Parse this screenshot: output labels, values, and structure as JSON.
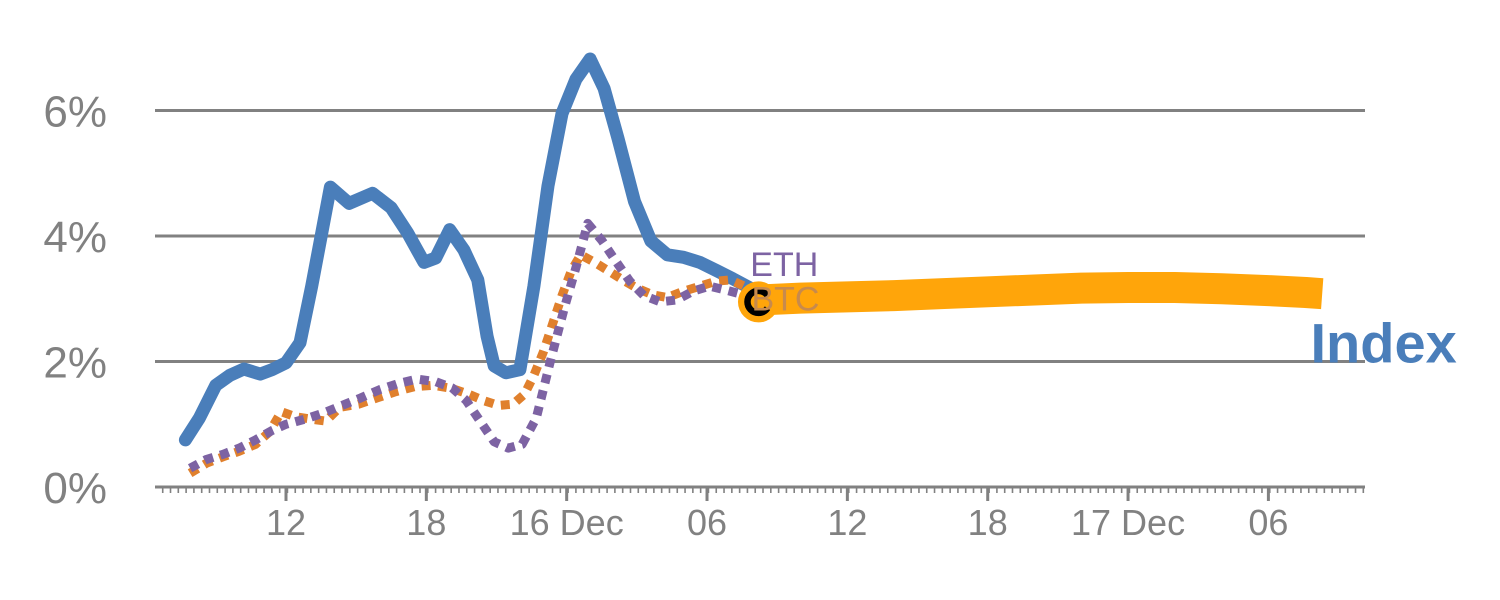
{
  "chart_data": {
    "type": "line",
    "title": "",
    "xlabel": "",
    "ylabel": "",
    "x_unit": "hours since 15 Dec 00:00",
    "xlim": [
      6.4,
      58.13
    ],
    "ylim": [
      0,
      6.9
    ],
    "grid": "horizontal",
    "grid_color": "#818181",
    "axis_color": "#818181",
    "text_color": "#818181",
    "y_axis": {
      "ticks": [
        {
          "pct": 0,
          "label": "0%"
        },
        {
          "pct": 2,
          "label": "2%"
        },
        {
          "pct": 4,
          "label": "4%"
        },
        {
          "pct": 6,
          "label": "6%"
        }
      ]
    },
    "x_axis": {
      "minor_tick_step_hours": 0.3333,
      "ticks": [
        {
          "hour": 12,
          "label": "12"
        },
        {
          "hour": 18,
          "label": "18"
        },
        {
          "hour": 24,
          "label": "16 Dec"
        },
        {
          "hour": 30,
          "label": "06"
        },
        {
          "hour": 36,
          "label": "12"
        },
        {
          "hour": 42,
          "label": "18"
        },
        {
          "hour": 48,
          "label": "17 Dec"
        },
        {
          "hour": 54,
          "label": "06"
        }
      ]
    },
    "series": [
      {
        "id": "index",
        "name": "Index",
        "color": "#4a7eba",
        "line_style": "solid",
        "line_width": 13,
        "points": [
          [
            7.7,
            0.75
          ],
          [
            8.3,
            1.1
          ],
          [
            9.0,
            1.62
          ],
          [
            9.6,
            1.78
          ],
          [
            10.2,
            1.88
          ],
          [
            10.9,
            1.8
          ],
          [
            11.4,
            1.87
          ],
          [
            12.0,
            1.98
          ],
          [
            12.6,
            2.3
          ],
          [
            13.1,
            3.2
          ],
          [
            13.9,
            4.78
          ],
          [
            14.7,
            4.52
          ],
          [
            15.7,
            4.68
          ],
          [
            16.5,
            4.45
          ],
          [
            17.2,
            4.05
          ],
          [
            17.9,
            3.58
          ],
          [
            18.4,
            3.65
          ],
          [
            19.0,
            4.1
          ],
          [
            19.6,
            3.78
          ],
          [
            20.2,
            3.3
          ],
          [
            20.6,
            2.4
          ],
          [
            20.9,
            1.93
          ],
          [
            21.4,
            1.82
          ],
          [
            22.0,
            1.87
          ],
          [
            22.6,
            3.2
          ],
          [
            23.2,
            4.8
          ],
          [
            23.8,
            5.95
          ],
          [
            24.4,
            6.5
          ],
          [
            25.0,
            6.82
          ],
          [
            25.6,
            6.35
          ],
          [
            26.2,
            5.55
          ],
          [
            26.9,
            4.55
          ],
          [
            27.6,
            3.92
          ],
          [
            28.3,
            3.7
          ],
          [
            29.0,
            3.66
          ],
          [
            29.7,
            3.58
          ],
          [
            30.4,
            3.45
          ],
          [
            31.1,
            3.32
          ],
          [
            31.8,
            3.18
          ],
          [
            32.2,
            2.98
          ]
        ]
      },
      {
        "id": "btc",
        "name": "BTC",
        "color": "#e0802d",
        "line_style": "dashed",
        "line_width": 9,
        "points": [
          [
            7.9,
            0.22
          ],
          [
            8.6,
            0.38
          ],
          [
            9.3,
            0.48
          ],
          [
            10.0,
            0.57
          ],
          [
            10.7,
            0.68
          ],
          [
            11.3,
            0.88
          ],
          [
            11.8,
            1.2
          ],
          [
            12.4,
            1.12
          ],
          [
            13.1,
            1.08
          ],
          [
            13.7,
            1.05
          ],
          [
            14.3,
            1.27
          ],
          [
            15.1,
            1.32
          ],
          [
            15.9,
            1.42
          ],
          [
            16.7,
            1.52
          ],
          [
            17.5,
            1.6
          ],
          [
            18.3,
            1.62
          ],
          [
            19.1,
            1.57
          ],
          [
            19.8,
            1.48
          ],
          [
            20.5,
            1.37
          ],
          [
            21.1,
            1.3
          ],
          [
            21.7,
            1.32
          ],
          [
            22.2,
            1.48
          ],
          [
            22.6,
            1.78
          ],
          [
            23.0,
            2.15
          ],
          [
            23.4,
            2.6
          ],
          [
            23.8,
            3.05
          ],
          [
            24.2,
            3.45
          ],
          [
            24.6,
            3.7
          ],
          [
            25.2,
            3.58
          ],
          [
            25.8,
            3.44
          ],
          [
            26.4,
            3.3
          ],
          [
            27.0,
            3.17
          ],
          [
            27.7,
            3.06
          ],
          [
            28.3,
            3.02
          ],
          [
            29.0,
            3.12
          ],
          [
            29.7,
            3.2
          ],
          [
            30.4,
            3.28
          ],
          [
            31.0,
            3.3
          ],
          [
            31.6,
            3.2
          ],
          [
            32.1,
            3.08
          ],
          [
            32.4,
            3.0
          ]
        ]
      },
      {
        "id": "eth",
        "name": "ETH",
        "color": "#7d63a3",
        "line_style": "dashed",
        "line_width": 9,
        "points": [
          [
            7.9,
            0.3
          ],
          [
            8.6,
            0.44
          ],
          [
            9.3,
            0.52
          ],
          [
            10.0,
            0.62
          ],
          [
            10.7,
            0.75
          ],
          [
            11.4,
            0.9
          ],
          [
            12.0,
            1.0
          ],
          [
            12.8,
            1.08
          ],
          [
            13.6,
            1.18
          ],
          [
            14.4,
            1.3
          ],
          [
            15.2,
            1.42
          ],
          [
            16.0,
            1.55
          ],
          [
            16.8,
            1.65
          ],
          [
            17.6,
            1.72
          ],
          [
            18.4,
            1.68
          ],
          [
            19.1,
            1.58
          ],
          [
            19.7,
            1.38
          ],
          [
            20.3,
            1.05
          ],
          [
            20.9,
            0.72
          ],
          [
            21.5,
            0.62
          ],
          [
            22.1,
            0.68
          ],
          [
            22.7,
            1.1
          ],
          [
            23.3,
            2.0
          ],
          [
            23.9,
            2.85
          ],
          [
            24.4,
            3.5
          ],
          [
            24.9,
            4.2
          ],
          [
            25.5,
            3.93
          ],
          [
            26.1,
            3.6
          ],
          [
            26.7,
            3.28
          ],
          [
            27.3,
            3.05
          ],
          [
            28.0,
            2.95
          ],
          [
            28.7,
            2.98
          ],
          [
            29.4,
            3.12
          ],
          [
            30.1,
            3.2
          ],
          [
            30.8,
            3.14
          ],
          [
            31.5,
            3.07
          ],
          [
            32.0,
            3.0
          ],
          [
            32.35,
            2.93
          ]
        ]
      },
      {
        "id": "index_forecast",
        "name": "Index forecast band",
        "color": "#ffa50a",
        "line_style": "solid",
        "line_width": 31,
        "points": [
          [
            32.2,
            2.98
          ],
          [
            34,
            3.01
          ],
          [
            36,
            3.03
          ],
          [
            38,
            3.05
          ],
          [
            40,
            3.08
          ],
          [
            42,
            3.11
          ],
          [
            44,
            3.14
          ],
          [
            46,
            3.17
          ],
          [
            48,
            3.18
          ],
          [
            50,
            3.18
          ],
          [
            52,
            3.16
          ],
          [
            54,
            3.13
          ],
          [
            55.6,
            3.1
          ],
          [
            56.3,
            3.08
          ]
        ]
      }
    ],
    "current_marker": {
      "hour": 32.2,
      "pct": 2.95,
      "shape": "open-ring",
      "ring_color": "#000000",
      "halo_color": "#ffa50a"
    },
    "series_labels": [
      {
        "id": "eth",
        "text": "ETH",
        "color": "#7d63a3",
        "hour": 31.85,
        "pct": 3.55
      },
      {
        "id": "btc",
        "text": "BTC",
        "color": "#c78a4d",
        "hour": 31.9,
        "pct": 3.0
      },
      {
        "id": "index",
        "text": "Index",
        "color": "#4a7eba",
        "hour": 55.8,
        "pct": 2.3
      }
    ]
  }
}
